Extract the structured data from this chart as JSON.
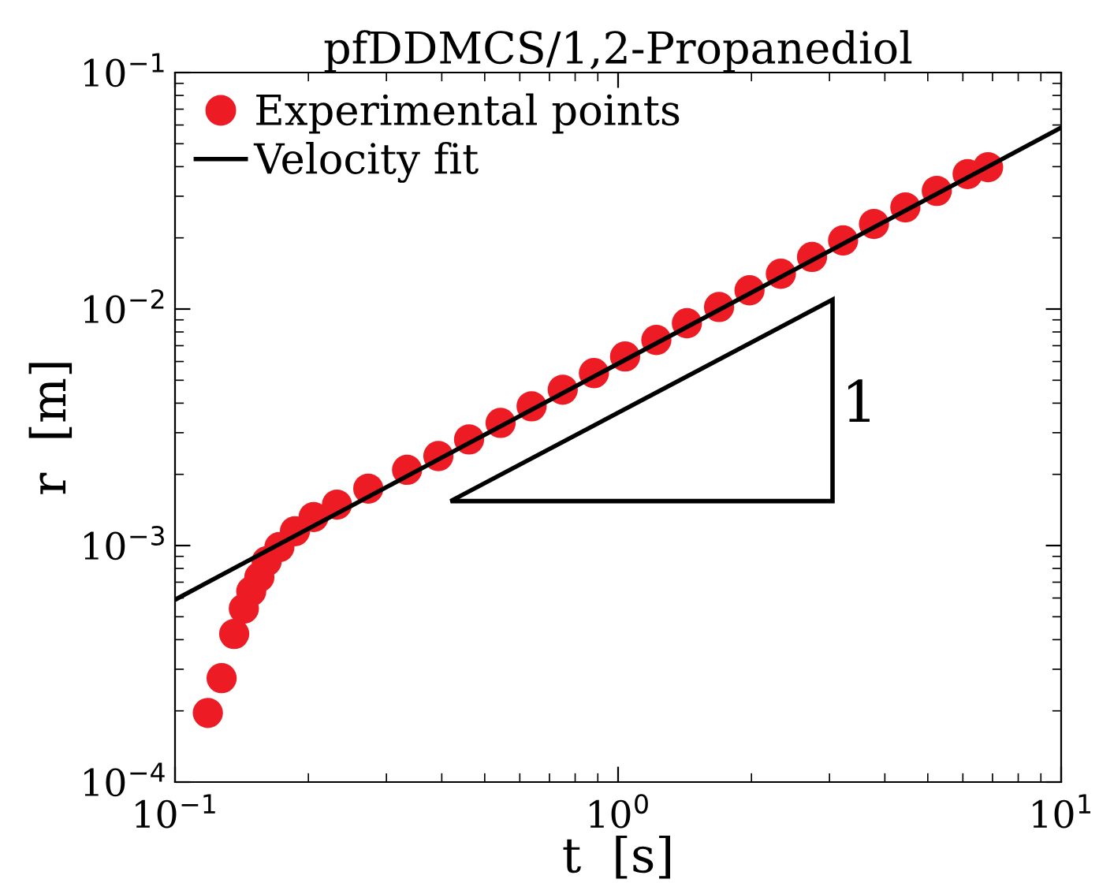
{
  "chart_data": {
    "type": "scatter",
    "title": "pfDDMCS/1,2-Propanediol",
    "xlabel": "t  [s]",
    "ylabel": "r  [m]",
    "log": "xy",
    "xlim": [
      0.1,
      10
    ],
    "ylim": [
      0.0001,
      0.1
    ],
    "xticks": [
      {
        "value": 0.1,
        "label": "10$^{−1}$"
      },
      {
        "value": 1,
        "label": "10$^{0}$"
      },
      {
        "value": 10,
        "label": "10$^{1}$"
      }
    ],
    "yticks": [
      {
        "value": 0.0001,
        "label": "10$^{−4}$"
      },
      {
        "value": 0.001,
        "label": "10$^{−3}$"
      },
      {
        "value": 0.01,
        "label": "10$^{−2}$"
      },
      {
        "value": 0.1,
        "label": "10$^{−1}$"
      }
    ],
    "grid": false,
    "legend": "top left",
    "annotations": [
      "1"
    ],
    "series": [
      {
        "name": "Experimental points",
        "marker": "circle",
        "color": "#ed1c24",
        "x": [
          0.1186,
          0.1274,
          0.136,
          0.143,
          0.1486,
          0.155,
          0.161,
          0.172,
          0.1865,
          0.2055,
          0.232,
          0.273,
          0.334,
          0.393,
          0.461,
          0.543,
          0.638,
          0.75,
          0.882,
          1.037,
          1.22,
          1.43,
          1.69,
          1.98,
          2.33,
          2.74,
          3.22,
          3.78,
          4.45,
          5.24,
          6.15,
          6.84
        ],
        "values": [
          0.000196,
          0.000275,
          0.000423,
          0.000541,
          0.000641,
          0.000736,
          0.000858,
          0.000985,
          0.00115,
          0.00132,
          0.00149,
          0.00174,
          0.00209,
          0.00239,
          0.00281,
          0.0033,
          0.00388,
          0.00456,
          0.00536,
          0.0063,
          0.0074,
          0.00871,
          0.0102,
          0.012,
          0.0141,
          0.0166,
          0.0195,
          0.0229,
          0.0269,
          0.0316,
          0.0372,
          0.0398
        ]
      },
      {
        "name": "Velocity fit",
        "type": "line",
        "line_style": "solid",
        "color": "#000000",
        "x": [
          0.1,
          10
        ],
        "values": [
          0.00059,
          0.0585
        ]
      }
    ]
  }
}
